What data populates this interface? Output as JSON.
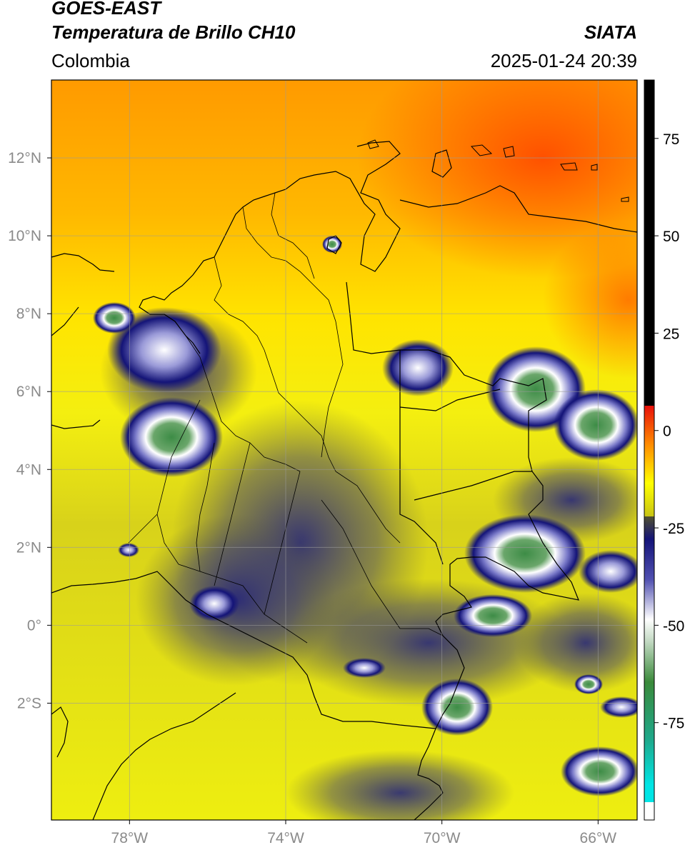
{
  "header": {
    "satellite": "GOES-EAST",
    "product": "Temperatura de Brillo CH10",
    "region": "Colombia",
    "brand": "SIATA",
    "timestamp": "2025-01-24 20:39"
  },
  "map": {
    "lon_range": [
      -80,
      -65
    ],
    "lat_range": [
      -5,
      14
    ],
    "lon_ticks": [
      {
        "value": -78,
        "label": "78°W"
      },
      {
        "value": -74,
        "label": "74°W"
      },
      {
        "value": -70,
        "label": "70°W"
      },
      {
        "value": -66,
        "label": "66°W"
      }
    ],
    "lat_ticks": [
      {
        "value": 12,
        "label": "12°N"
      },
      {
        "value": 10,
        "label": "10°N"
      },
      {
        "value": 8,
        "label": "8°N"
      },
      {
        "value": 6,
        "label": "6°N"
      },
      {
        "value": 4,
        "label": "4°N"
      },
      {
        "value": 2,
        "label": "2°N"
      },
      {
        "value": 0,
        "label": "0°"
      },
      {
        "value": -2,
        "label": "2°S"
      }
    ],
    "grid": true
  },
  "colorbar": {
    "range": [
      -100,
      90
    ],
    "ticks": [
      {
        "value": 75,
        "label": "75"
      },
      {
        "value": 50,
        "label": "50"
      },
      {
        "value": 25,
        "label": "25"
      },
      {
        "value": 0,
        "label": "0"
      },
      {
        "value": -25,
        "label": "-25"
      },
      {
        "value": -50,
        "label": "-50"
      },
      {
        "value": -75,
        "label": "-75"
      }
    ],
    "colors": {
      "black": "#000000",
      "red": "#e8100a",
      "orange": "#ff8c00",
      "yellow": "#ffff00",
      "olive": "#c8c414",
      "navy": "#141478",
      "white": "#ffffff",
      "green": "#3a8a3a",
      "teal": "#1fa88a",
      "cyan": "#00e5e5"
    }
  }
}
